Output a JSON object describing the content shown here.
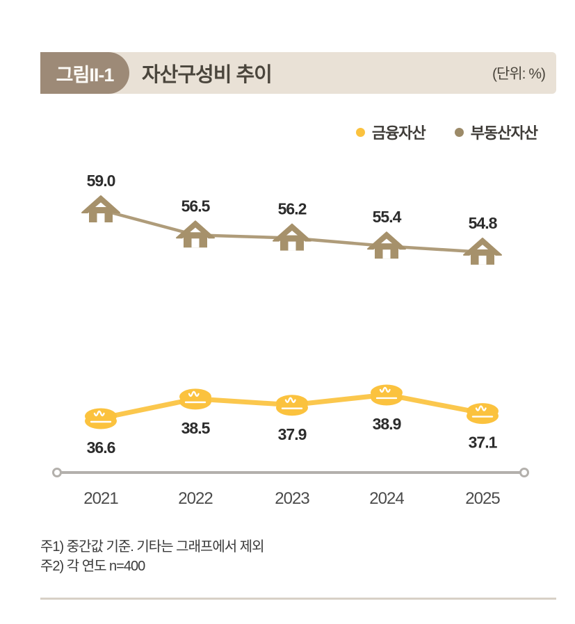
{
  "header": {
    "badge": "그림II-1",
    "title": "자산구성비 추이",
    "unit": "(단위: %)"
  },
  "legend": [
    {
      "label": "금융자산",
      "color": "#FBC23E"
    },
    {
      "label": "부동산자산",
      "color": "#9C8A68"
    }
  ],
  "chart_data": {
    "type": "line",
    "title": "자산구성비 추이",
    "unit": "%",
    "categories": [
      "2021",
      "2022",
      "2023",
      "2024",
      "2025"
    ],
    "series": [
      {
        "name": "부동산자산",
        "marker": "house",
        "color": "#A6916B",
        "values": [
          59.0,
          56.5,
          56.2,
          55.4,
          54.8
        ],
        "labels": [
          "59.0",
          "56.5",
          "56.2",
          "55.4",
          "54.8"
        ]
      },
      {
        "name": "금융자산",
        "marker": "coin",
        "color": "#FBC23E",
        "values": [
          36.6,
          38.5,
          37.9,
          38.9,
          37.1
        ],
        "labels": [
          "36.6",
          "38.5",
          "37.9",
          "38.9",
          "37.1"
        ]
      }
    ],
    "xlabel": "",
    "ylabel": "",
    "grid": false,
    "legend_position": "top-right",
    "axis_endpoints": "open-circles"
  },
  "notes": [
    "주1) 중간값 기준. 기타는 그래프에서 제외",
    "주2) 각 연도 n=400"
  ],
  "colors": {
    "header_bar_bg": "#E9E1D6",
    "badge_bg": "#9D8A77",
    "badge_text": "#FDFBF7",
    "title_text": "#4A453C",
    "financial": "#FBC23E",
    "realestate": "#A6916B",
    "axis": "#B3B0AC",
    "value_label": "#2C2C2C",
    "year_label": "#4B4B4B",
    "divider": "#D8D0C6"
  }
}
